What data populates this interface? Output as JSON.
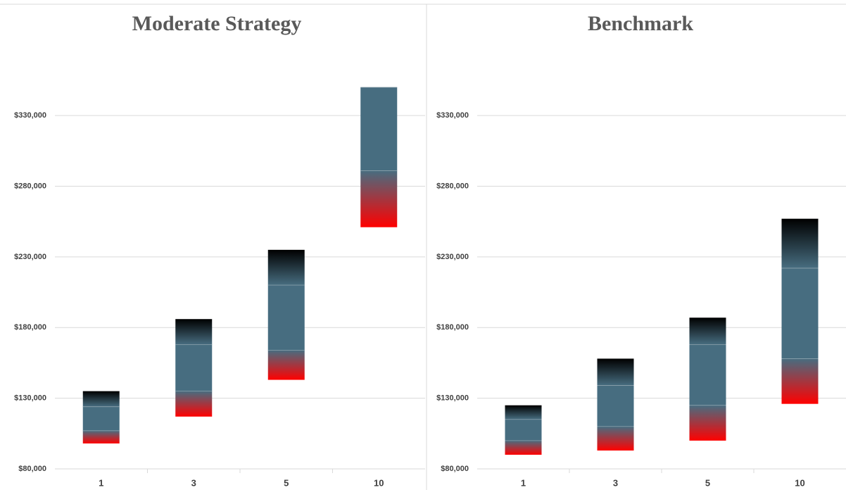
{
  "chart_data": [
    {
      "type": "range_bar",
      "title": "Moderate Strategy",
      "categories": [
        "1",
        "3",
        "5",
        "10"
      ],
      "low": [
        98000,
        117000,
        143000,
        251000
      ],
      "mid_low": [
        107000,
        135000,
        164000,
        291000
      ],
      "mid_high": [
        124000,
        168000,
        210000,
        350000
      ],
      "high": [
        135000,
        186000,
        235000,
        350000
      ],
      "colors": [
        "#ff0000",
        "#476d80",
        "#000000"
      ],
      "ylim": [
        80000,
        350000
      ],
      "yticks": [
        {
          "value": 80000,
          "label": "$80,000"
        },
        {
          "value": 130000,
          "label": "$130,000"
        },
        {
          "value": 180000,
          "label": "$180,000"
        },
        {
          "value": 230000,
          "label": "$230,000"
        },
        {
          "value": 280000,
          "label": "$280,000"
        },
        {
          "value": 330000,
          "label": "$330,000"
        }
      ],
      "grid": true
    },
    {
      "type": "range_bar",
      "title": "Benchmark",
      "categories": [
        "1",
        "3",
        "5",
        "10"
      ],
      "low": [
        90000,
        93000,
        100000,
        126000
      ],
      "mid_low": [
        100000,
        110000,
        125000,
        158000
      ],
      "mid_high": [
        115000,
        139000,
        168000,
        222000
      ],
      "high": [
        125000,
        158000,
        187000,
        257000
      ],
      "colors": [
        "#ff0000",
        "#476d80",
        "#000000"
      ],
      "ylim": [
        80000,
        350000
      ],
      "yticks": [
        {
          "value": 80000,
          "label": "$80,000"
        },
        {
          "value": 130000,
          "label": "$130,000"
        },
        {
          "value": 180000,
          "label": "$180,000"
        },
        {
          "value": 230000,
          "label": "$230,000"
        },
        {
          "value": 280000,
          "label": "$280,000"
        },
        {
          "value": 330000,
          "label": "$330,000"
        }
      ],
      "grid": true
    }
  ]
}
